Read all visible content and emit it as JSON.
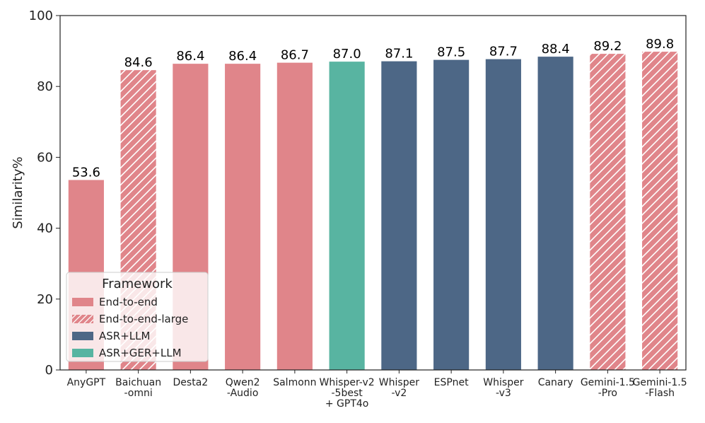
{
  "chart_data": {
    "type": "bar",
    "title": "",
    "xlabel": "",
    "ylabel": "Similarity%",
    "ylim": [
      0,
      100
    ],
    "yticks": [
      0,
      20,
      40,
      60,
      80,
      100
    ],
    "legend_title": "Framework",
    "legend_position": "bottom-left",
    "colors": {
      "End-to-end": "#e0858a",
      "End-to-end-large": "#e0858a",
      "ASR+LLM": "#4d6786",
      "ASR+GER+LLM": "#58b4a1"
    },
    "legend": [
      {
        "label": "End-to-end",
        "hatched": false
      },
      {
        "label": "End-to-end-large",
        "hatched": true
      },
      {
        "label": "ASR+LLM",
        "hatched": false
      },
      {
        "label": "ASR+GER+LLM",
        "hatched": false
      }
    ],
    "bars": [
      {
        "category": [
          "AnyGPT"
        ],
        "value": 53.6,
        "label": "53.6",
        "framework": "End-to-end"
      },
      {
        "category": [
          "Baichuan",
          "-omni"
        ],
        "value": 84.6,
        "label": "84.6",
        "framework": "End-to-end-large"
      },
      {
        "category": [
          "Desta2"
        ],
        "value": 86.4,
        "label": "86.4",
        "framework": "End-to-end"
      },
      {
        "category": [
          "Qwen2",
          "-Audio"
        ],
        "value": 86.4,
        "label": "86.4",
        "framework": "End-to-end"
      },
      {
        "category": [
          "Salmonn"
        ],
        "value": 86.7,
        "label": "86.7",
        "framework": "End-to-end"
      },
      {
        "category": [
          "Whisper-v2",
          "-5best",
          "+ GPT4o"
        ],
        "value": 87.0,
        "label": "87.0",
        "framework": "ASR+GER+LLM"
      },
      {
        "category": [
          "Whisper",
          "-v2"
        ],
        "value": 87.1,
        "label": "87.1",
        "framework": "ASR+LLM"
      },
      {
        "category": [
          "ESPnet"
        ],
        "value": 87.5,
        "label": "87.5",
        "framework": "ASR+LLM"
      },
      {
        "category": [
          "Whisper",
          "-v3"
        ],
        "value": 87.7,
        "label": "87.7",
        "framework": "ASR+LLM"
      },
      {
        "category": [
          "Canary"
        ],
        "value": 88.4,
        "label": "88.4",
        "framework": "ASR+LLM"
      },
      {
        "category": [
          "Gemini-1.5",
          "-Pro"
        ],
        "value": 89.2,
        "label": "89.2",
        "framework": "End-to-end-large"
      },
      {
        "category": [
          "Gemini-1.5",
          "-Flash"
        ],
        "value": 89.8,
        "label": "89.8",
        "framework": "End-to-end-large"
      }
    ]
  }
}
